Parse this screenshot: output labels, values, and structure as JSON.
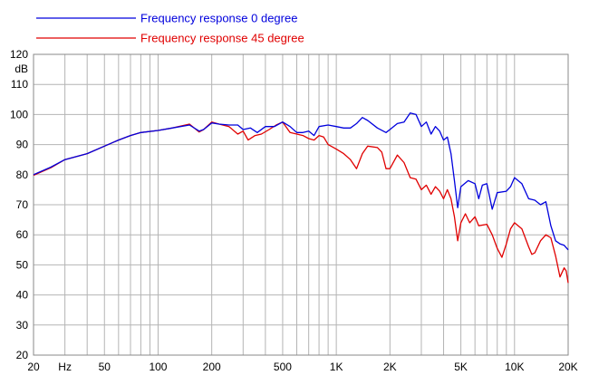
{
  "chart_data": {
    "type": "line",
    "xscale": "log",
    "xlim": [
      20,
      20000
    ],
    "ylim": [
      20,
      120
    ],
    "ylabel": "dB",
    "grid": true,
    "legend_position": "top-left",
    "x_ticks": [
      {
        "value": 20,
        "label": "20"
      },
      {
        "value": 30,
        "label": "Hz"
      },
      {
        "value": 50,
        "label": "50"
      },
      {
        "value": 100,
        "label": "100"
      },
      {
        "value": 200,
        "label": "200"
      },
      {
        "value": 500,
        "label": "500"
      },
      {
        "value": 1000,
        "label": "1K"
      },
      {
        "value": 2000,
        "label": "2K"
      },
      {
        "value": 5000,
        "label": "5K"
      },
      {
        "value": 10000,
        "label": "10K"
      },
      {
        "value": 20000,
        "label": "20K"
      }
    ],
    "x_gridlines": [
      20,
      30,
      40,
      50,
      60,
      70,
      80,
      90,
      100,
      200,
      300,
      400,
      500,
      600,
      700,
      800,
      900,
      1000,
      2000,
      3000,
      4000,
      5000,
      6000,
      7000,
      8000,
      9000,
      10000,
      20000
    ],
    "y_ticks": [
      20,
      30,
      40,
      50,
      60,
      70,
      80,
      90,
      100,
      110,
      120
    ],
    "series": [
      {
        "name": "Frequency response 0 degree",
        "color": "#0000dd",
        "points": [
          [
            20,
            80
          ],
          [
            25,
            82.5
          ],
          [
            30,
            85
          ],
          [
            40,
            87
          ],
          [
            50,
            89.5
          ],
          [
            60,
            91.5
          ],
          [
            70,
            93
          ],
          [
            80,
            94
          ],
          [
            100,
            94.7
          ],
          [
            120,
            95.5
          ],
          [
            150,
            96.5
          ],
          [
            170,
            94.5
          ],
          [
            180,
            95
          ],
          [
            200,
            97.2
          ],
          [
            220,
            96.8
          ],
          [
            250,
            96.5
          ],
          [
            280,
            96.5
          ],
          [
            300,
            95
          ],
          [
            330,
            95.5
          ],
          [
            360,
            94
          ],
          [
            400,
            96
          ],
          [
            450,
            96
          ],
          [
            500,
            97.5
          ],
          [
            550,
            96
          ],
          [
            600,
            94
          ],
          [
            650,
            94
          ],
          [
            700,
            94.5
          ],
          [
            750,
            93
          ],
          [
            800,
            96
          ],
          [
            900,
            96.5
          ],
          [
            1000,
            96
          ],
          [
            1100,
            95.5
          ],
          [
            1200,
            95.5
          ],
          [
            1300,
            97
          ],
          [
            1400,
            99
          ],
          [
            1500,
            98
          ],
          [
            1700,
            95.5
          ],
          [
            1900,
            94
          ],
          [
            2000,
            95
          ],
          [
            2200,
            97
          ],
          [
            2400,
            97.5
          ],
          [
            2600,
            100.5
          ],
          [
            2800,
            100
          ],
          [
            3000,
            96
          ],
          [
            3200,
            97.5
          ],
          [
            3400,
            93.5
          ],
          [
            3600,
            96
          ],
          [
            3800,
            94.5
          ],
          [
            4000,
            91.5
          ],
          [
            4200,
            92.5
          ],
          [
            4400,
            87
          ],
          [
            4600,
            78
          ],
          [
            4800,
            69
          ],
          [
            5000,
            76
          ],
          [
            5500,
            78
          ],
          [
            6000,
            77
          ],
          [
            6300,
            72
          ],
          [
            6600,
            76.5
          ],
          [
            7000,
            77
          ],
          [
            7500,
            68.5
          ],
          [
            8000,
            74
          ],
          [
            9000,
            74.5
          ],
          [
            9500,
            76
          ],
          [
            10000,
            79
          ],
          [
            11000,
            77
          ],
          [
            12000,
            72
          ],
          [
            13000,
            71.5
          ],
          [
            14000,
            70
          ],
          [
            15000,
            71
          ],
          [
            16000,
            63
          ],
          [
            17000,
            58
          ],
          [
            18000,
            57
          ],
          [
            19000,
            56.5
          ],
          [
            20000,
            55
          ]
        ]
      },
      {
        "name": "Frequency response 45 degree",
        "color": "#e00000",
        "points": [
          [
            20,
            79.8
          ],
          [
            25,
            82.3
          ],
          [
            30,
            85
          ],
          [
            40,
            87
          ],
          [
            50,
            89.5
          ],
          [
            60,
            91.5
          ],
          [
            70,
            93
          ],
          [
            80,
            94
          ],
          [
            100,
            94.7
          ],
          [
            120,
            95.5
          ],
          [
            150,
            96.8
          ],
          [
            170,
            94.2
          ],
          [
            180,
            95
          ],
          [
            200,
            97.5
          ],
          [
            220,
            96.8
          ],
          [
            250,
            96
          ],
          [
            280,
            93.5
          ],
          [
            300,
            94.5
          ],
          [
            320,
            91.5
          ],
          [
            350,
            93
          ],
          [
            380,
            93.5
          ],
          [
            420,
            95
          ],
          [
            460,
            96.5
          ],
          [
            500,
            97.5
          ],
          [
            550,
            94
          ],
          [
            600,
            93.5
          ],
          [
            650,
            93
          ],
          [
            700,
            92
          ],
          [
            750,
            91.5
          ],
          [
            800,
            93
          ],
          [
            850,
            92.5
          ],
          [
            900,
            90
          ],
          [
            1000,
            88.5
          ],
          [
            1100,
            87
          ],
          [
            1200,
            85
          ],
          [
            1300,
            82
          ],
          [
            1400,
            87
          ],
          [
            1500,
            89.5
          ],
          [
            1700,
            89
          ],
          [
            1800,
            87.5
          ],
          [
            1900,
            82
          ],
          [
            2000,
            82
          ],
          [
            2200,
            86.5
          ],
          [
            2400,
            84
          ],
          [
            2600,
            79
          ],
          [
            2800,
            78.5
          ],
          [
            3000,
            75
          ],
          [
            3200,
            76.5
          ],
          [
            3400,
            73.5
          ],
          [
            3600,
            76
          ],
          [
            3800,
            74.5
          ],
          [
            4000,
            72
          ],
          [
            4200,
            75
          ],
          [
            4400,
            72
          ],
          [
            4600,
            66
          ],
          [
            4800,
            58
          ],
          [
            5000,
            64
          ],
          [
            5300,
            67
          ],
          [
            5600,
            64
          ],
          [
            6000,
            66
          ],
          [
            6300,
            63
          ],
          [
            7000,
            63.5
          ],
          [
            7500,
            60
          ],
          [
            8000,
            55.5
          ],
          [
            8500,
            52.5
          ],
          [
            9000,
            57
          ],
          [
            9500,
            62
          ],
          [
            10000,
            64
          ],
          [
            11000,
            62
          ],
          [
            12000,
            56
          ],
          [
            12500,
            53.5
          ],
          [
            13000,
            54
          ],
          [
            14000,
            58
          ],
          [
            15000,
            60
          ],
          [
            16000,
            59
          ],
          [
            17000,
            53
          ],
          [
            18000,
            46
          ],
          [
            19000,
            49
          ],
          [
            19500,
            48
          ],
          [
            20000,
            44
          ]
        ]
      }
    ]
  }
}
